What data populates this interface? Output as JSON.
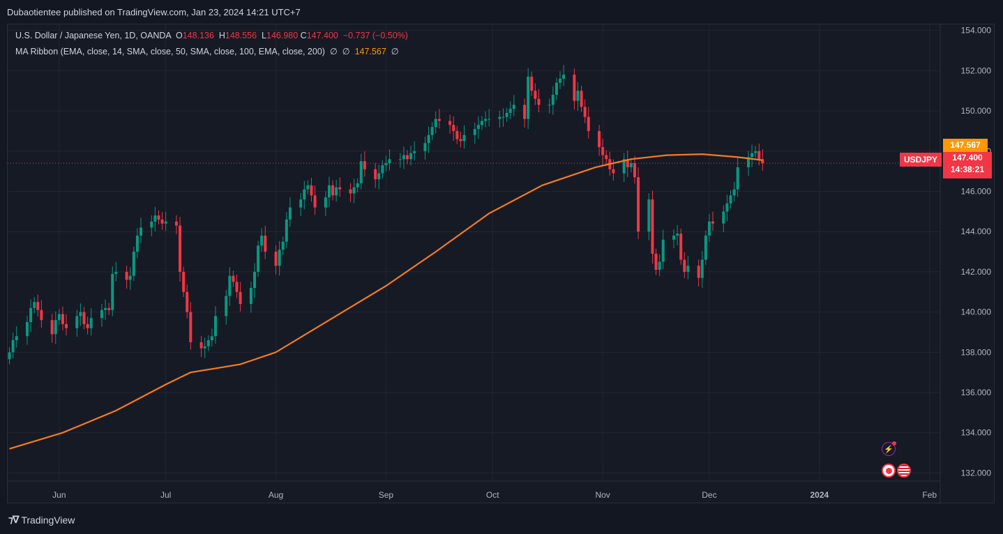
{
  "publisher_line": "Dubaotientee published on TradingView.com, Jan 23, 2024 14:21 UTC+7",
  "legend": {
    "symbol_desc": "U.S. Dollar / Japanese Yen, 1D, OANDA",
    "o_label": "O",
    "o_value": "148.136",
    "h_label": "H",
    "h_value": "148.556",
    "l_label": "L",
    "l_value": "146.980",
    "c_label": "C",
    "c_value": "147.400",
    "change": "−0.737 (−0.50%)",
    "ma_label": "MA Ribbon (EMA, close, 14, SMA, close, 50, SMA, close, 100, EMA, close, 200)",
    "ma_empty1": "∅",
    "ma_empty2": "∅",
    "ma_value": "147.567",
    "ma_empty3": "∅"
  },
  "price_scale": {
    "symbol_tag": "USDJPY",
    "last_price": "147.400",
    "countdown": "14:38:21",
    "ma_price": "147.567"
  },
  "brand": "TradingView",
  "colors": {
    "up": "#089981",
    "down": "#f23645",
    "ma": "#f57c1f",
    "bg": "#161a25",
    "grid": "#232632"
  },
  "chart_data": {
    "type": "candlestick",
    "symbol": "USDJPY",
    "timeframe": "1D",
    "ylim": [
      131.6,
      154.3
    ],
    "y_ticks": [
      "154.000",
      "152.000",
      "150.000",
      "148.000",
      "146.000",
      "144.000",
      "142.000",
      "140.000",
      "138.000",
      "136.000",
      "134.000",
      "132.000"
    ],
    "x_ticks": [
      {
        "label": "Jun",
        "day": 14
      },
      {
        "label": "Jul",
        "day": 44
      },
      {
        "label": "Aug",
        "day": 75
      },
      {
        "label": "Sep",
        "day": 106
      },
      {
        "label": "Oct",
        "day": 136
      },
      {
        "label": "Nov",
        "day": 167
      },
      {
        "label": "Dec",
        "day": 197
      },
      {
        "label": "2024",
        "day": 228
      },
      {
        "label": "Feb",
        "day": 259
      }
    ],
    "x_range": [
      -0.5,
      262
    ],
    "close_series": [
      [
        0,
        138.0
      ],
      [
        1,
        138.6
      ],
      [
        2,
        138.8
      ],
      [
        5,
        139.5
      ],
      [
        6,
        140.2
      ],
      [
        7,
        140.5
      ],
      [
        8,
        140.1
      ],
      [
        9,
        139.6
      ],
      [
        12,
        138.9
      ],
      [
        13,
        139.6
      ],
      [
        14,
        139.9
      ],
      [
        15,
        139.4
      ],
      [
        16,
        139.2
      ],
      [
        19,
        139.8
      ],
      [
        20,
        140.0
      ],
      [
        21,
        139.4
      ],
      [
        22,
        139.2
      ],
      [
        23,
        139.7
      ],
      [
        26,
        140.1
      ],
      [
        27,
        140.2
      ],
      [
        28,
        140.1
      ],
      [
        29,
        141.9
      ],
      [
        30,
        142.0
      ],
      [
        33,
        141.6
      ],
      [
        34,
        141.8
      ],
      [
        35,
        143.0
      ],
      [
        36,
        143.8
      ],
      [
        37,
        144.2
      ],
      [
        40,
        144.5
      ],
      [
        41,
        144.8
      ],
      [
        42,
        144.6
      ],
      [
        43,
        144.4
      ],
      [
        44,
        144.5
      ],
      [
        47,
        144.3
      ],
      [
        48,
        142.0
      ],
      [
        49,
        141.0
      ],
      [
        50,
        140.0
      ],
      [
        51,
        138.5
      ],
      [
        54,
        138.2
      ],
      [
        55,
        138.3
      ],
      [
        56,
        138.6
      ],
      [
        57,
        138.8
      ],
      [
        58,
        139.8
      ],
      [
        61,
        140.8
      ],
      [
        62,
        141.8
      ],
      [
        63,
        141.5
      ],
      [
        64,
        141.0
      ],
      [
        65,
        140.4
      ],
      [
        68,
        141.2
      ],
      [
        69,
        142.0
      ],
      [
        70,
        143.3
      ],
      [
        71,
        143.8
      ],
      [
        72,
        143.0
      ],
      [
        75,
        142.3
      ],
      [
        76,
        143.1
      ],
      [
        77,
        143.5
      ],
      [
        78,
        144.6
      ],
      [
        79,
        145.2
      ],
      [
        82,
        145.6
      ],
      [
        83,
        146.1
      ],
      [
        84,
        146.3
      ],
      [
        85,
        145.8
      ],
      [
        86,
        145.2
      ],
      [
        89,
        145.7
      ],
      [
        90,
        146.3
      ],
      [
        91,
        145.8
      ],
      [
        92,
        146.2
      ],
      [
        93,
        146.1
      ],
      [
        96,
        145.9
      ],
      [
        97,
        146.2
      ],
      [
        98,
        146.4
      ],
      [
        99,
        147.5
      ],
      [
        100,
        147.1
      ],
      [
        103,
        146.6
      ],
      [
        104,
        146.9
      ],
      [
        105,
        147.3
      ],
      [
        106,
        147.4
      ],
      [
        107,
        147.6
      ],
      [
        110,
        147.6
      ],
      [
        111,
        147.8
      ],
      [
        112,
        147.6
      ],
      [
        113,
        147.9
      ],
      [
        114,
        148.0
      ],
      [
        117,
        148.4
      ],
      [
        118,
        148.8
      ],
      [
        119,
        149.2
      ],
      [
        120,
        149.6
      ],
      [
        121,
        149.5
      ],
      [
        124,
        149.3
      ],
      [
        125,
        149.0
      ],
      [
        126,
        148.6
      ],
      [
        127,
        148.5
      ],
      [
        128,
        148.8
      ],
      [
        131,
        149.1
      ],
      [
        132,
        149.3
      ],
      [
        133,
        149.5
      ],
      [
        134,
        149.6
      ],
      [
        135,
        149.6
      ],
      [
        138,
        149.7
      ],
      [
        139,
        149.7
      ],
      [
        140,
        149.9
      ],
      [
        141,
        150.1
      ],
      [
        142,
        150.3
      ],
      [
        145,
        149.6
      ],
      [
        146,
        151.7
      ],
      [
        147,
        151.0
      ],
      [
        148,
        150.6
      ],
      [
        149,
        150.3
      ],
      [
        152,
        150.3
      ],
      [
        153,
        150.8
      ],
      [
        154,
        151.4
      ],
      [
        155,
        151.6
      ],
      [
        156,
        151.8
      ],
      [
        159,
        150.5
      ],
      [
        160,
        151.0
      ],
      [
        161,
        150.2
      ],
      [
        162,
        149.7
      ],
      [
        163,
        149.0
      ],
      [
        166,
        148.2
      ],
      [
        167,
        147.8
      ],
      [
        168,
        147.6
      ],
      [
        169,
        147.1
      ],
      [
        170,
        146.9
      ],
      [
        173,
        147.6
      ],
      [
        174,
        147.2
      ],
      [
        175,
        147.4
      ],
      [
        176,
        146.7
      ],
      [
        177,
        144.0
      ],
      [
        180,
        145.6
      ],
      [
        181,
        142.9
      ],
      [
        182,
        142.1
      ],
      [
        183,
        142.5
      ],
      [
        184,
        143.6
      ],
      [
        187,
        143.8
      ],
      [
        188,
        143.9
      ],
      [
        189,
        142.6
      ],
      [
        190,
        142.0
      ],
      [
        191,
        142.3
      ],
      [
        194,
        141.7
      ],
      [
        195,
        142.6
      ],
      [
        196,
        143.8
      ],
      [
        197,
        144.5
      ],
      [
        198,
        144.4
      ],
      [
        201,
        145.0
      ],
      [
        202,
        145.4
      ],
      [
        203,
        145.8
      ],
      [
        204,
        146.1
      ],
      [
        205,
        147.2
      ],
      [
        208,
        147.7
      ],
      [
        209,
        147.9
      ],
      [
        210,
        148.0
      ],
      [
        211,
        147.6
      ],
      [
        212,
        147.4
      ]
    ],
    "series": [
      {
        "name": "MA Ribbon",
        "values": [
          [
            0,
            133.2
          ],
          [
            15,
            134.0
          ],
          [
            30,
            135.1
          ],
          [
            44,
            136.4
          ],
          [
            51,
            137.0
          ],
          [
            58,
            137.2
          ],
          [
            65,
            137.4
          ],
          [
            75,
            138.0
          ],
          [
            90,
            139.6
          ],
          [
            106,
            141.3
          ],
          [
            120,
            143.0
          ],
          [
            135,
            144.9
          ],
          [
            150,
            146.3
          ],
          [
            165,
            147.2
          ],
          [
            175,
            147.6
          ],
          [
            185,
            147.8
          ],
          [
            195,
            147.85
          ],
          [
            205,
            147.7
          ],
          [
            212,
            147.55
          ]
        ]
      }
    ]
  }
}
